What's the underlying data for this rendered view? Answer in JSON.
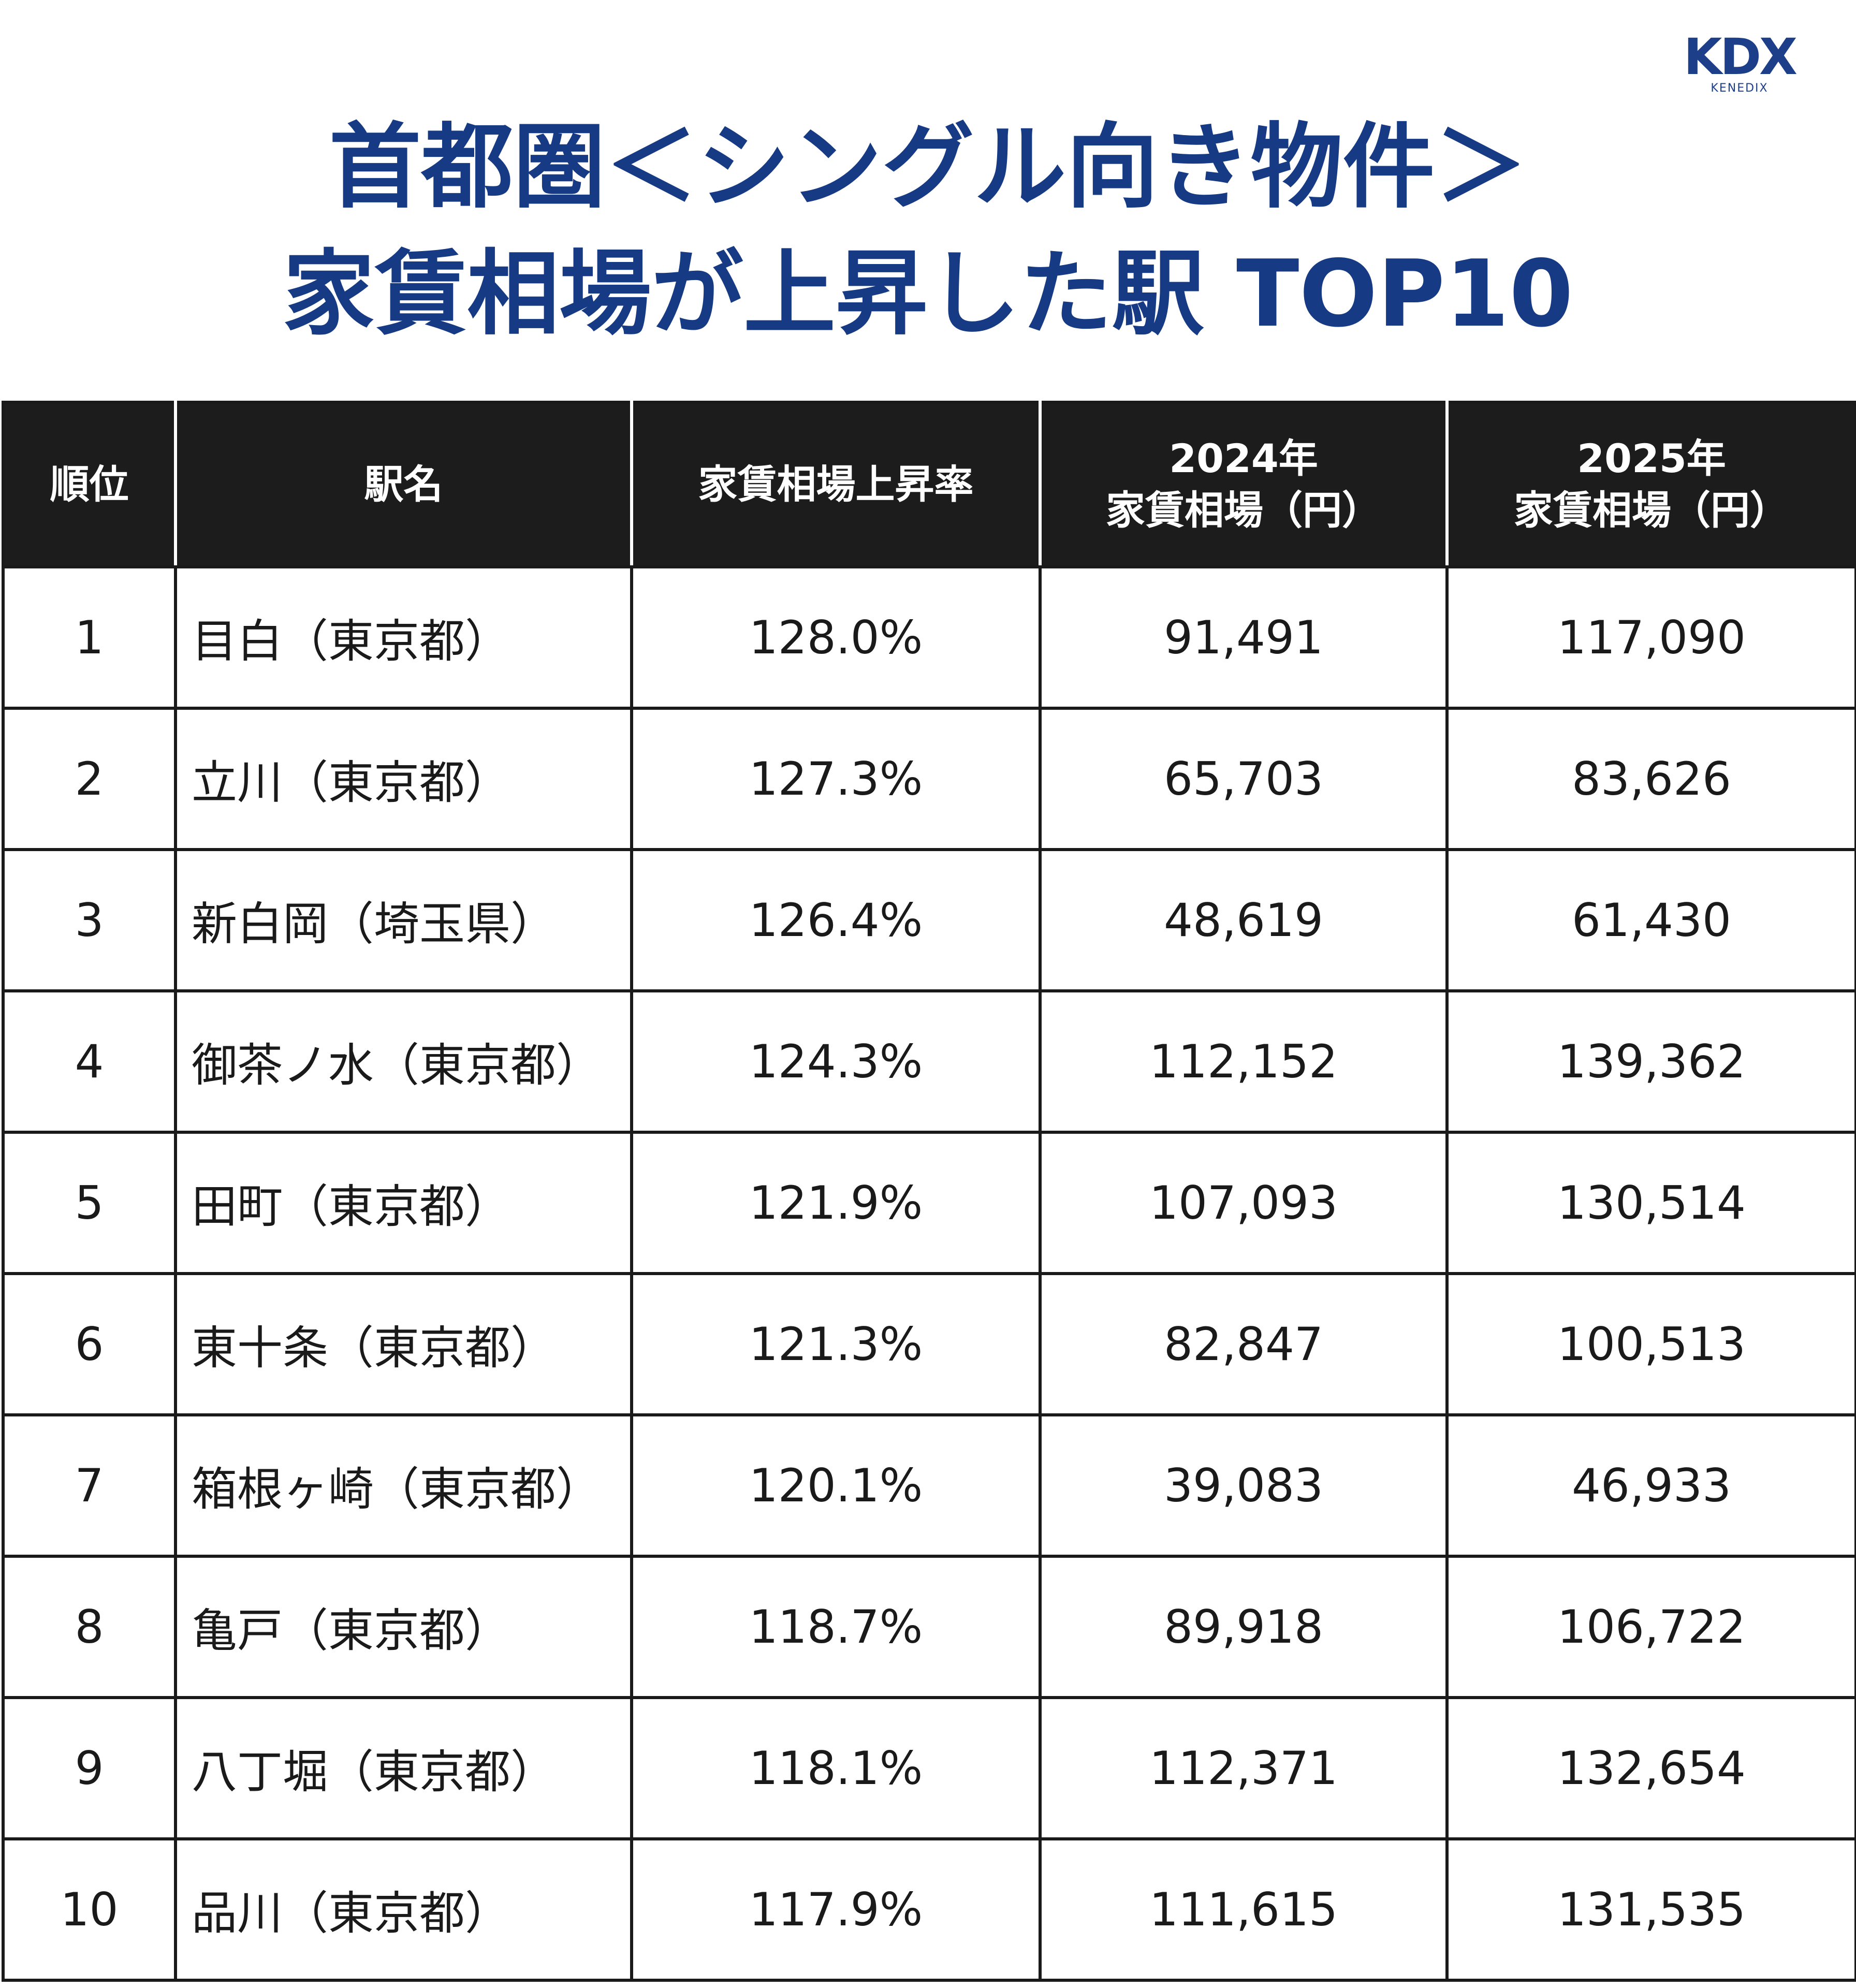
{
  "header": {
    "logo": "KDX",
    "logo_sub": "KENEDIX",
    "title_lines": [
      "首都圏＜シングル向き物件＞",
      "家賃相場が上昇した駅 TOP10"
    ]
  },
  "table": {
    "columns": [
      [
        "順位"
      ],
      [
        "駅名"
      ],
      [
        "家賃相場上昇率"
      ],
      [
        "2024年",
        "家賃相場（円）"
      ],
      [
        "2025年",
        "家賃相場（円）"
      ]
    ],
    "rows": [
      [
        "1",
        "目白（東京都）",
        "128.0%",
        "91,491",
        "117,090"
      ],
      [
        "2",
        "立川（東京都）",
        "127.3%",
        "65,703",
        "83,626"
      ],
      [
        "3",
        "新白岡（埼玉県）",
        "126.4%",
        "48,619",
        "61,430"
      ],
      [
        "4",
        "御茶ノ水（東京都）",
        "124.3%",
        "112,152",
        "139,362"
      ],
      [
        "5",
        "田町（東京都）",
        "121.9%",
        "107,093",
        "130,514"
      ],
      [
        "6",
        "東十条（東京都）",
        "121.3%",
        "82,847",
        "100,513"
      ],
      [
        "7",
        "箱根ヶ崎（東京都）",
        "120.1%",
        "39,083",
        "46,933"
      ],
      [
        "8",
        "亀戸（東京都）",
        "118.7%",
        "89,918",
        "106,722"
      ],
      [
        "9",
        "八丁堀（東京都）",
        "118.1%",
        "112,371",
        "132,654"
      ],
      [
        "10",
        "品川（東京都）",
        "117.9%",
        "111,615",
        "131,535"
      ]
    ]
  }
}
